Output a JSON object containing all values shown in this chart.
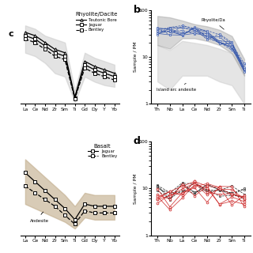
{
  "panel_a": {
    "x_labels": [
      "La",
      "Ce",
      "Nd",
      "Zr",
      "Sm",
      "Ti",
      "Gd",
      "Dy",
      "Y",
      "Yb"
    ],
    "legend_title": "Rhyolite/Dacite",
    "legend": [
      "Teutonic Bore",
      "Jaguar",
      "Bentley"
    ],
    "line1": [
      42,
      40,
      36,
      32,
      30,
      4,
      25,
      22,
      20,
      18
    ],
    "line2": [
      40,
      38,
      34,
      30,
      28,
      3.5,
      23,
      20,
      18,
      16
    ],
    "line3": [
      38,
      36,
      32,
      28,
      26,
      3,
      21,
      18,
      16,
      14
    ],
    "fill_upper": [
      46,
      44,
      40,
      38,
      36,
      8,
      30,
      27,
      25,
      23
    ],
    "fill_lower": [
      30,
      28,
      24,
      18,
      16,
      1,
      16,
      13,
      11,
      10
    ],
    "shade_color": "#cccccc",
    "ylim": [
      0,
      55
    ]
  },
  "panel_b": {
    "panel_label": "b",
    "x_labels": [
      "Th",
      "Nb",
      "La",
      "Ce",
      "Nd",
      "Zr",
      "Sm",
      "Ti"
    ],
    "y_label": "Sample / PM",
    "ylim": [
      1,
      100
    ],
    "rhyolite_fill_upper": [
      75,
      70,
      60,
      50,
      45,
      38,
      28,
      9
    ],
    "rhyolite_fill_lower": [
      18,
      15,
      25,
      25,
      22,
      18,
      12,
      4
    ],
    "rhyolite_shade": "#999999",
    "ia_fill_upper": [
      18,
      14,
      22,
      20,
      18,
      15,
      12,
      5
    ],
    "ia_fill_lower": [
      3,
      2,
      4,
      4,
      4,
      3,
      2.5,
      1
    ],
    "ia_shade": "#cccccc",
    "rhyolite_lines_seed": 42,
    "rhyolite_lines_count": 10,
    "rhyolite_lines_mid": [
      40,
      35,
      38,
      35,
      30,
      25,
      18,
      6
    ],
    "rhyolite_label": "Rhyolite/Da",
    "ia_label": "Island arc andesite"
  },
  "panel_c": {
    "x_labels": [
      "La",
      "Ce",
      "Nd",
      "Zr",
      "Sm",
      "Ti",
      "Gd",
      "Dy",
      "Y",
      "Yb"
    ],
    "legend_title": "Basalt",
    "legend": [
      "Jaguar",
      "Bentley"
    ],
    "line1": [
      28,
      24,
      20,
      16,
      12,
      7,
      14,
      13,
      13,
      13
    ],
    "line2": [
      22,
      19,
      16,
      13,
      9,
      5,
      11,
      10,
      10,
      10
    ],
    "fill_upper": [
      34,
      30,
      26,
      22,
      18,
      13,
      19,
      18,
      18,
      18
    ],
    "fill_lower": [
      14,
      12,
      10,
      8,
      6,
      3,
      8,
      7,
      7,
      7
    ],
    "shade_color": "#c4b090",
    "ylim": [
      0,
      42
    ],
    "andesite_label": "Andesite"
  },
  "panel_d": {
    "panel_label": "d",
    "x_labels": [
      "Th",
      "Nb",
      "La",
      "Ce",
      "Nd",
      "Zr",
      "Sm",
      "Ti"
    ],
    "y_label": "Sample / PM",
    "ylim": [
      1,
      100
    ],
    "red_seed": 12,
    "black_seed": 99,
    "red_mid": [
      7,
      6,
      10,
      10,
      9,
      8,
      8,
      7
    ],
    "black_mid": [
      9,
      8,
      11,
      11,
      10,
      9,
      9,
      8
    ]
  }
}
